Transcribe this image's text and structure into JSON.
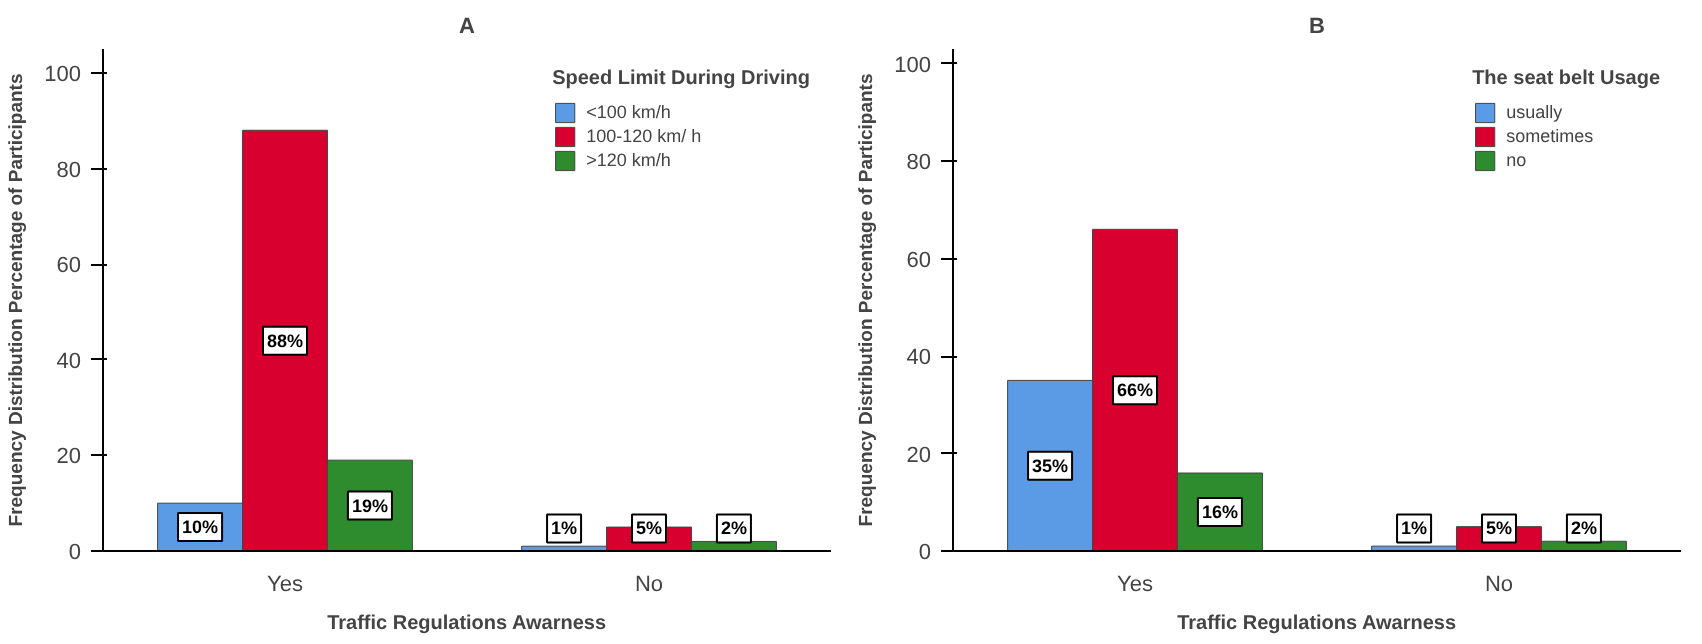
{
  "chart_data": [
    {
      "type": "bar",
      "title": "A",
      "xlabel": "Traffic Regulations Awarness",
      "ylabel": "Frequency Distribution Percentage of Participants",
      "legend_title": "Speed Limit During Driving",
      "categories": [
        "Yes",
        "No"
      ],
      "ylim": [
        0,
        105
      ],
      "yticks": [
        0,
        20,
        40,
        60,
        80,
        100
      ],
      "grid": false,
      "legend": "top right",
      "series": [
        {
          "name": "<100 km/h",
          "color": "#5b9be6",
          "values": [
            10,
            1
          ],
          "value_labels": [
            "10%",
            "1%"
          ]
        },
        {
          "name": "100-120 km/ h",
          "color": "#d8002f",
          "values": [
            88,
            5
          ],
          "value_labels": [
            "88%",
            "5%"
          ]
        },
        {
          "name": ">120 km/h",
          "color": "#2e8b2e",
          "values": [
            19,
            2
          ],
          "value_labels": [
            "19%",
            "2%"
          ]
        }
      ]
    },
    {
      "type": "bar",
      "title": "B",
      "xlabel": "Traffic Regulations Awarness",
      "ylabel": "Frequency Distribution Percentage of Participants",
      "legend_title": "The seat belt Usage",
      "categories": [
        "Yes",
        "No"
      ],
      "ylim": [
        0,
        103
      ],
      "yticks": [
        0,
        20,
        40,
        60,
        80,
        100
      ],
      "grid": false,
      "legend": "top right",
      "series": [
        {
          "name": "usually",
          "color": "#5b9be6",
          "values": [
            35,
            1
          ],
          "value_labels": [
            "35%",
            "1%"
          ]
        },
        {
          "name": "sometimes",
          "color": "#d8002f",
          "values": [
            66,
            5
          ],
          "value_labels": [
            "66%",
            "5%"
          ]
        },
        {
          "name": "no",
          "color": "#2e8b2e",
          "values": [
            16,
            2
          ],
          "value_labels": [
            "16%",
            "2%"
          ]
        }
      ]
    }
  ]
}
